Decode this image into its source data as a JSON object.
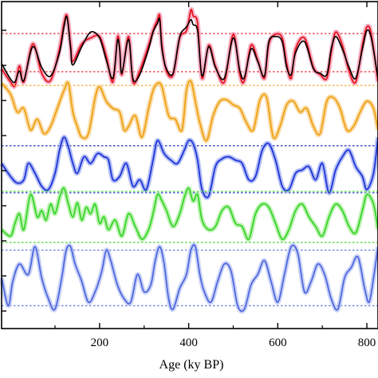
{
  "chart_data": {
    "type": "line",
    "title": "",
    "xlabel": "Age (ky BP)",
    "ylabel": "",
    "xlim": [
      -20,
      825
    ],
    "xticks": [
      200,
      400,
      600,
      800
    ],
    "xtick_labels": [
      "200",
      "400",
      "600",
      "800"
    ],
    "grid": false,
    "legend": "none",
    "panels": [
      {
        "name": "",
        "color": "#e8141c",
        "band_color": "#f39ab5",
        "ref_lines": [
          {
            "x_values": [
              -20,
              825
            ],
            "y": 0.76,
            "color": "#e8141c"
          },
          {
            "x_values": [
              -20,
              825
            ],
            "y": 0.24,
            "color": "#e8141c"
          }
        ],
        "series": [
          {
            "color": "#e8141c",
            "x": [
              -20,
              0,
              10,
              20,
              30,
              50,
              70,
              90,
              110,
              120,
              127,
              135,
              140,
              160,
              180,
              200,
              215,
              230,
              240,
              245,
              250,
              265,
              275,
              290,
              310,
              320,
              330,
              335,
              340,
              350,
              365,
              380,
              395,
              405,
              410,
              420,
              430,
              445,
              460,
              480,
              500,
              515,
              525,
              540,
              555,
              570,
              580,
              595,
              610,
              620,
              630,
              640,
              660,
              680,
              695,
              710,
              720,
              730,
              745,
              760,
              775,
              790,
              800,
              810,
              825
            ],
            "y": [
              0.28,
              0.1,
              0.05,
              0.32,
              0.1,
              0.62,
              0.22,
              0.12,
              0.55,
              0.9,
              1.0,
              0.6,
              0.38,
              0.62,
              0.7,
              0.72,
              0.45,
              0.1,
              0.7,
              0.58,
              0.2,
              0.72,
              0.1,
              0.25,
              0.6,
              0.8,
              0.95,
              1.0,
              0.6,
              0.25,
              0.2,
              0.7,
              0.8,
              1.08,
              1.0,
              0.9,
              0.15,
              0.6,
              0.32,
              0.1,
              0.75,
              0.2,
              0.12,
              0.6,
              0.4,
              0.15,
              0.62,
              0.75,
              0.7,
              0.35,
              0.15,
              0.55,
              0.7,
              0.3,
              0.2,
              0.15,
              0.5,
              0.78,
              0.6,
              0.25,
              0.1,
              0.6,
              0.85,
              0.75,
              0.1
            ]
          },
          {
            "color": "#000000",
            "x": [
              -20,
              0,
              10,
              20,
              30,
              50,
              70,
              90,
              110,
              120,
              127,
              135,
              140,
              160,
              180,
              200,
              215,
              230,
              240,
              245,
              250,
              265,
              275,
              290,
              310,
              320,
              330,
              335,
              340,
              350,
              365,
              380,
              395,
              405,
              410,
              420,
              430,
              445,
              460,
              480,
              500,
              515,
              525,
              540,
              555,
              570,
              580,
              595,
              610,
              620,
              630,
              640,
              660,
              680,
              695,
              710,
              720,
              730,
              745,
              760,
              775,
              790,
              800,
              810,
              825
            ],
            "y": [
              0.35,
              0.14,
              0.1,
              0.25,
              0.12,
              0.58,
              0.3,
              0.18,
              0.5,
              0.85,
              0.98,
              0.55,
              0.33,
              0.58,
              0.78,
              0.7,
              0.4,
              0.15,
              0.66,
              0.55,
              0.22,
              0.68,
              0.14,
              0.2,
              0.55,
              0.78,
              0.9,
              0.95,
              0.55,
              0.28,
              0.22,
              0.72,
              0.85,
              0.95,
              0.88,
              0.8,
              0.18,
              0.58,
              0.3,
              0.15,
              0.7,
              0.25,
              0.16,
              0.55,
              0.38,
              0.18,
              0.65,
              0.72,
              0.65,
              0.3,
              0.2,
              0.5,
              0.65,
              0.28,
              0.22,
              0.2,
              0.55,
              0.72,
              0.55,
              0.3,
              0.15,
              0.55,
              0.8,
              0.7,
              0.15
            ]
          }
        ]
      },
      {
        "name": "",
        "color": "#f0a012",
        "band_color": "#f7d08c",
        "ref_lines": [
          {
            "x_values": [
              -20,
              825
            ],
            "y": 0.92,
            "color": "#f0a012"
          },
          {
            "x_values": [
              -20,
              825
            ],
            "y": 0.08,
            "color": "#f0a012"
          }
        ],
        "series": [
          {
            "color": "#f0a012",
            "x": [
              -20,
              0,
              15,
              30,
              45,
              60,
              75,
              90,
              105,
              120,
              130,
              140,
              150,
              160,
              175,
              190,
              200,
              215,
              230,
              245,
              255,
              265,
              280,
              295,
              310,
              320,
              330,
              340,
              355,
              370,
              385,
              395,
              405,
              415,
              425,
              440,
              455,
              470,
              485,
              500,
              515,
              530,
              545,
              560,
              575,
              590,
              605,
              620,
              635,
              650,
              665,
              680,
              695,
              710,
              725,
              740,
              755,
              770,
              785,
              800,
              815,
              825
            ],
            "y": [
              0.95,
              0.8,
              0.55,
              0.6,
              0.3,
              0.45,
              0.25,
              0.35,
              0.6,
              0.85,
              0.95,
              0.55,
              0.35,
              0.2,
              0.25,
              0.75,
              0.9,
              0.7,
              0.6,
              0.55,
              0.3,
              0.35,
              0.5,
              0.2,
              0.6,
              0.85,
              0.95,
              0.9,
              0.5,
              0.45,
              0.3,
              0.85,
              0.98,
              0.7,
              0.4,
              0.15,
              0.5,
              0.7,
              0.72,
              0.65,
              0.6,
              0.4,
              0.3,
              0.72,
              0.75,
              0.2,
              0.35,
              0.65,
              0.7,
              0.55,
              0.6,
              0.35,
              0.25,
              0.7,
              0.75,
              0.6,
              0.3,
              0.35,
              0.55,
              0.7,
              0.6,
              0.3
            ]
          }
        ]
      },
      {
        "name": "",
        "color": "#1f35d8",
        "band_color": "#9aa8f0",
        "ref_lines": [
          {
            "x_values": [
              -20,
              825
            ],
            "y": 0.82,
            "color": "#1f35d8"
          },
          {
            "x_values": [
              -20,
              825
            ],
            "y": 0.1,
            "color": "#1f35d8"
          }
        ],
        "series": [
          {
            "color": "#1f35d8",
            "x": [
              -20,
              0,
              15,
              30,
              40,
              55,
              70,
              85,
              100,
              110,
              120,
              130,
              140,
              150,
              165,
              180,
              195,
              210,
              220,
              230,
              245,
              260,
              275,
              290,
              305,
              320,
              330,
              345,
              360,
              375,
              390,
              400,
              410,
              420,
              430,
              445,
              460,
              475,
              490,
              505,
              520,
              535,
              550,
              565,
              580,
              595,
              610,
              625,
              640,
              655,
              670,
              685,
              700,
              715,
              730,
              745,
              760,
              775,
              790,
              800,
              815,
              825
            ],
            "y": [
              0.55,
              0.35,
              0.25,
              0.3,
              0.55,
              0.4,
              0.2,
              0.15,
              0.4,
              0.75,
              0.95,
              0.8,
              0.55,
              0.4,
              0.65,
              0.55,
              0.7,
              0.65,
              0.6,
              0.3,
              0.35,
              0.55,
              0.2,
              0.3,
              0.15,
              0.6,
              0.9,
              0.7,
              0.6,
              0.55,
              0.75,
              0.9,
              0.85,
              0.6,
              0.15,
              0.05,
              0.5,
              0.62,
              0.65,
              0.6,
              0.55,
              0.3,
              0.35,
              0.75,
              0.85,
              0.6,
              0.2,
              0.15,
              0.4,
              0.45,
              0.5,
              0.3,
              0.55,
              0.1,
              0.45,
              0.65,
              0.75,
              0.5,
              0.35,
              0.15,
              0.4,
              0.95
            ]
          }
        ]
      },
      {
        "name": "",
        "color": "#37d62a",
        "band_color": "#a8ee9a",
        "ref_lines": [
          {
            "x_values": [
              -20,
              825
            ],
            "y": 0.9,
            "color": "#37d62a"
          },
          {
            "x_values": [
              -20,
              825
            ],
            "y": 0.1,
            "color": "#37d62a"
          }
        ],
        "series": [
          {
            "color": "#37d62a",
            "x": [
              -20,
              0,
              10,
              20,
              30,
              45,
              60,
              70,
              80,
              90,
              100,
              110,
              120,
              130,
              140,
              150,
              160,
              170,
              180,
              190,
              200,
              210,
              220,
              235,
              250,
              265,
              280,
              295,
              310,
              320,
              330,
              340,
              350,
              365,
              380,
              390,
              400,
              410,
              420,
              430,
              445,
              460,
              475,
              490,
              505,
              520,
              535,
              550,
              565,
              580,
              595,
              610,
              625,
              640,
              655,
              670,
              685,
              700,
              715,
              730,
              745,
              760,
              775,
              790,
              800,
              815,
              825
            ],
            "y": [
              0.3,
              0.2,
              0.4,
              0.55,
              0.3,
              0.85,
              0.5,
              0.6,
              0.45,
              0.7,
              0.55,
              0.8,
              0.95,
              0.7,
              0.5,
              0.72,
              0.45,
              0.65,
              0.55,
              0.7,
              0.4,
              0.5,
              0.3,
              0.45,
              0.2,
              0.55,
              0.35,
              0.15,
              0.3,
              0.55,
              0.85,
              0.75,
              0.6,
              0.35,
              0.55,
              0.8,
              0.95,
              0.75,
              0.85,
              0.45,
              0.3,
              0.35,
              0.6,
              0.65,
              0.4,
              0.35,
              0.15,
              0.55,
              0.7,
              0.65,
              0.4,
              0.15,
              0.3,
              0.6,
              0.7,
              0.5,
              0.35,
              0.2,
              0.5,
              0.7,
              0.6,
              0.35,
              0.25,
              0.6,
              0.85,
              0.7,
              0.3
            ]
          }
        ]
      },
      {
        "name": "",
        "color": "#4e68de",
        "band_color": "#b9c4f3",
        "ref_lines": [
          {
            "x_values": [
              -20,
              825
            ],
            "y": 0.9,
            "color": "#4e68de"
          },
          {
            "x_values": [
              -20,
              825
            ],
            "y": 0.1,
            "color": "#4e68de"
          }
        ],
        "series": [
          {
            "color": "#4e68de",
            "x": [
              -20,
              -5,
              5,
              20,
              40,
              55,
              70,
              85,
              100,
              115,
              125,
              135,
              145,
              160,
              175,
              190,
              205,
              215,
              225,
              240,
              255,
              270,
              285,
              300,
              315,
              325,
              335,
              345,
              355,
              365,
              380,
              395,
              405,
              415,
              425,
              435,
              450,
              465,
              480,
              495,
              510,
              525,
              540,
              555,
              570,
              585,
              600,
              615,
              630,
              645,
              660,
              675,
              690,
              705,
              720,
              735,
              750,
              765,
              780,
              795,
              805,
              815,
              825
            ],
            "y": [
              0.5,
              0.1,
              0.45,
              0.7,
              0.55,
              0.95,
              0.5,
              0.2,
              0.05,
              0.5,
              0.9,
              0.95,
              0.7,
              0.45,
              0.15,
              0.3,
              0.6,
              0.9,
              0.75,
              0.4,
              0.2,
              0.15,
              0.55,
              0.3,
              0.4,
              0.75,
              0.95,
              0.7,
              0.2,
              0.05,
              0.35,
              0.55,
              0.9,
              0.95,
              0.55,
              0.3,
              0.15,
              0.45,
              0.7,
              0.6,
              0.1,
              0.05,
              0.4,
              0.55,
              0.75,
              0.45,
              0.15,
              0.55,
              0.95,
              0.85,
              0.3,
              0.45,
              0.7,
              0.55,
              0.2,
              0.05,
              0.5,
              0.65,
              0.8,
              0.35,
              0.15,
              0.5,
              0.95
            ]
          }
        ]
      }
    ]
  }
}
